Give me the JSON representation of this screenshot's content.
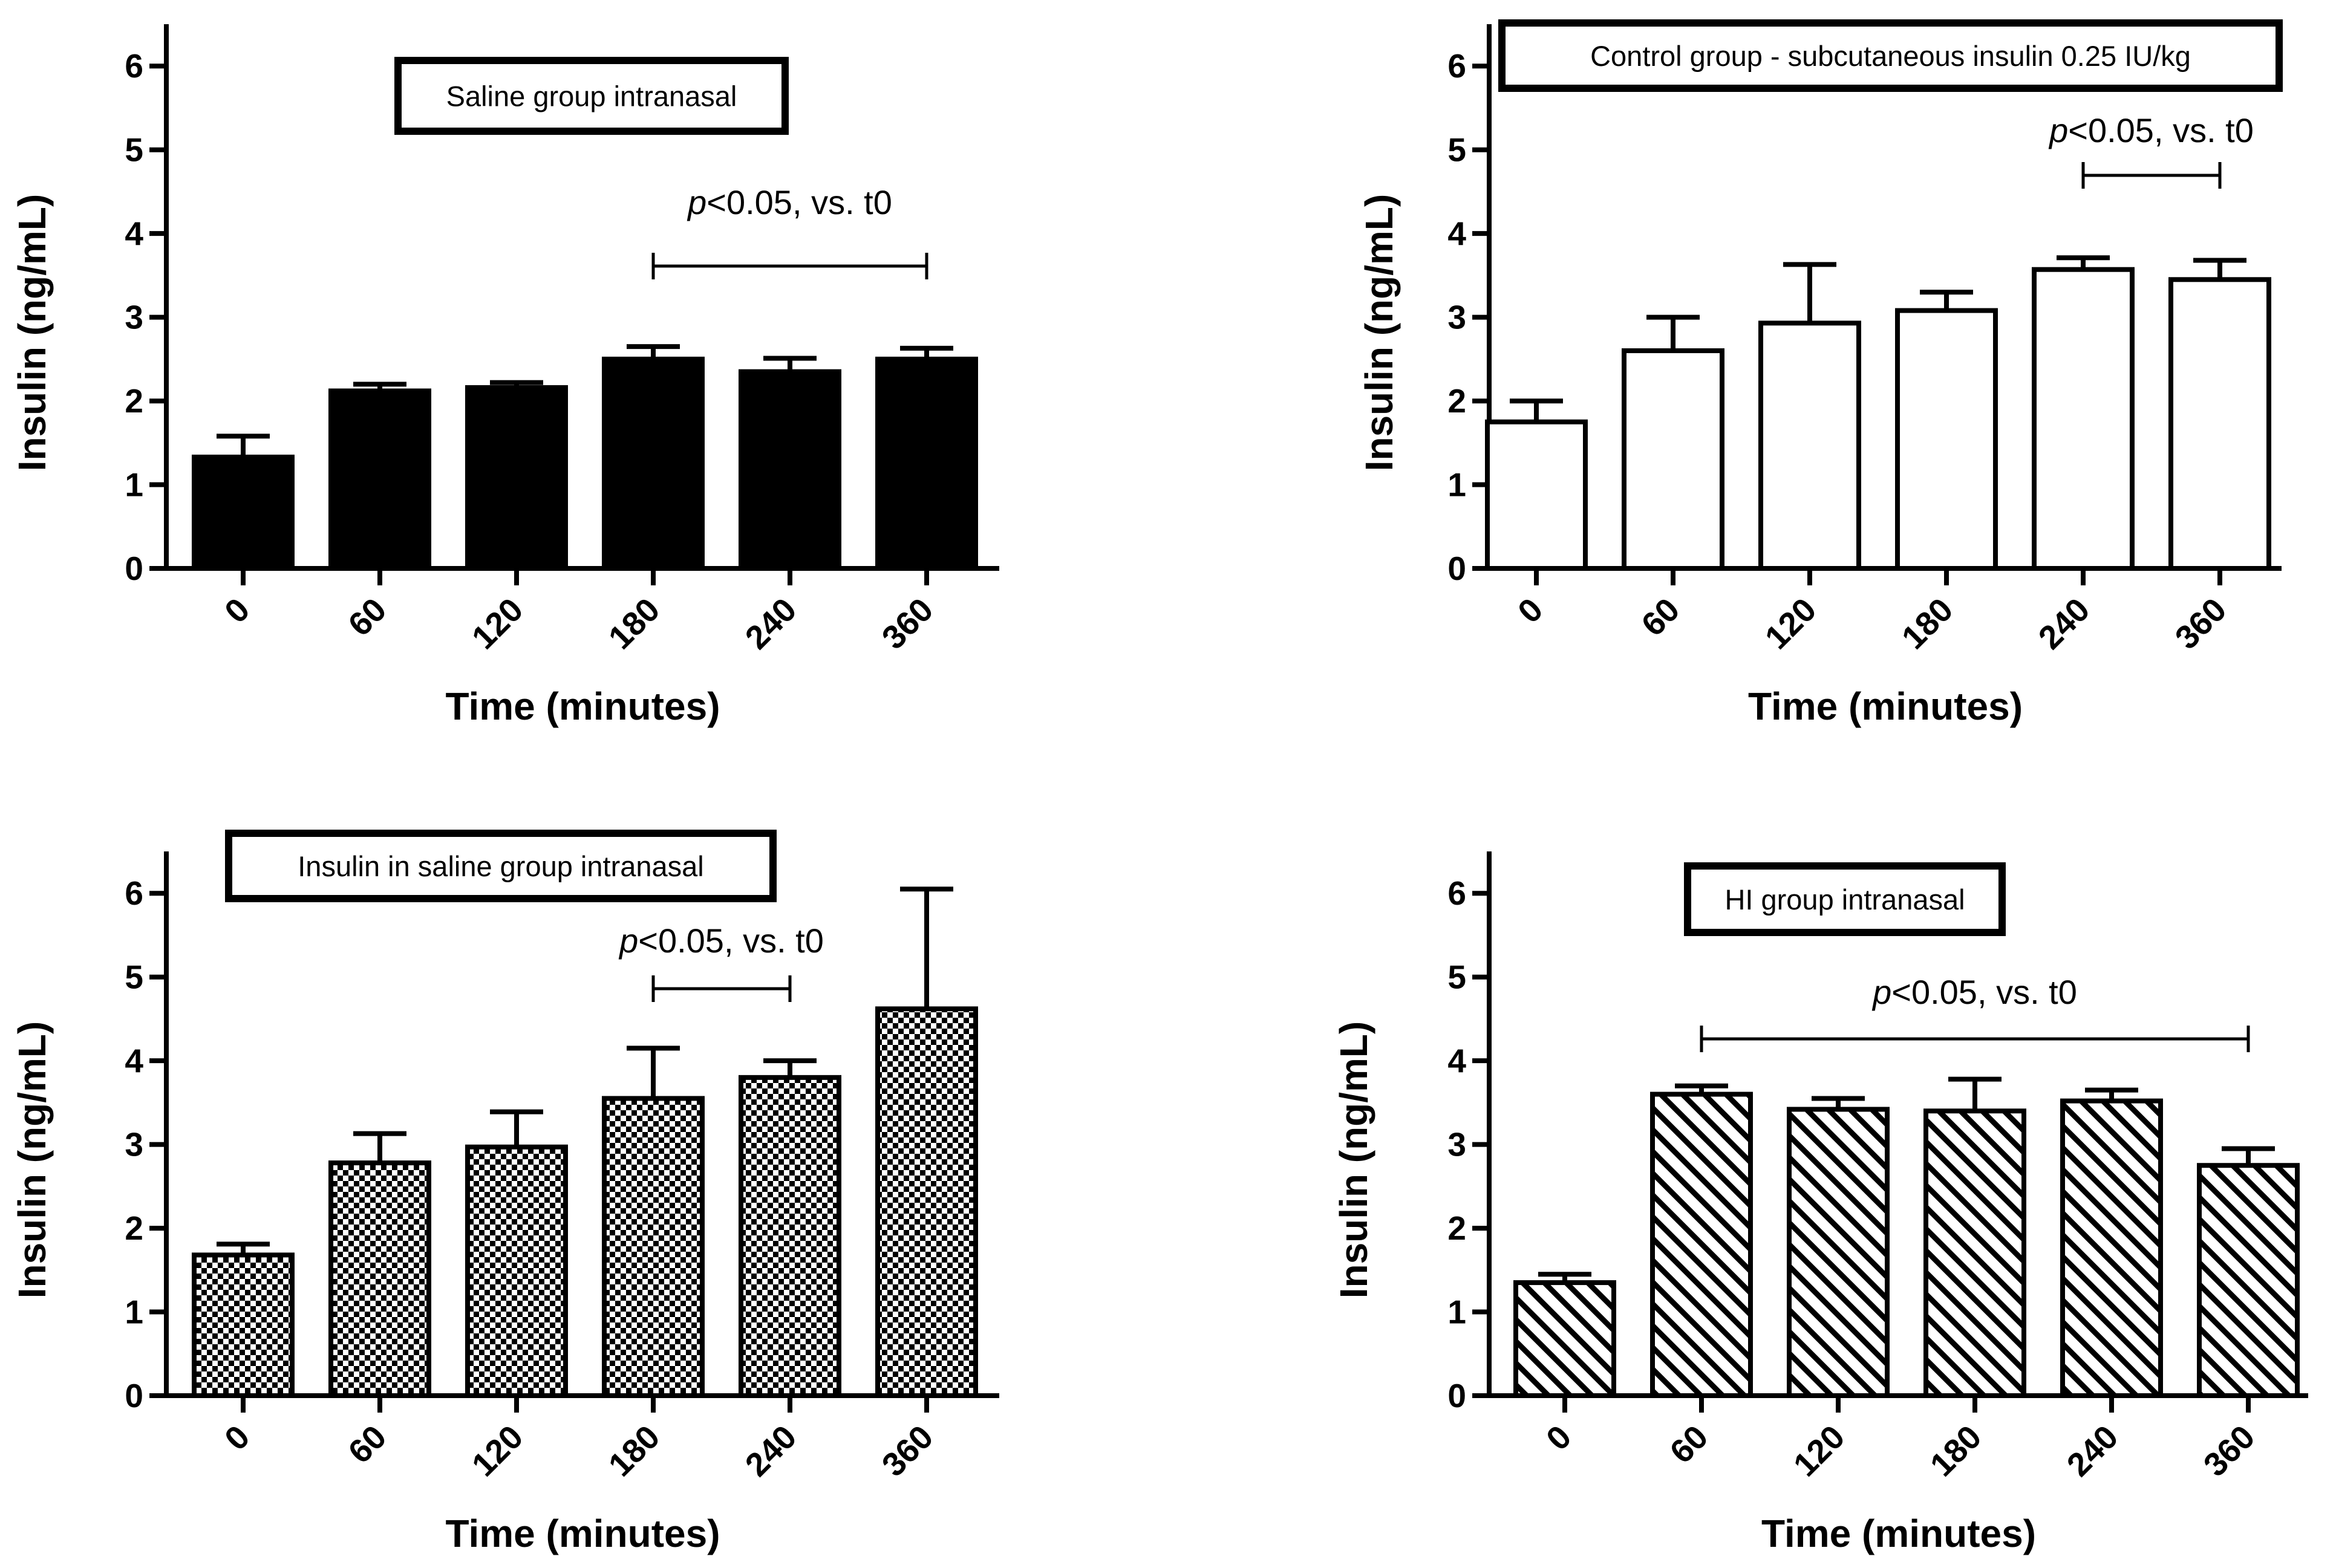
{
  "chart_data": [
    {
      "type": "bar",
      "panel": "top-left",
      "title": "Saline group intranasal",
      "categories": [
        "0",
        "60",
        "120",
        "180",
        "240",
        "360"
      ],
      "values": [
        1.33,
        2.12,
        2.16,
        2.5,
        2.35,
        2.5
      ],
      "errors": [
        0.25,
        0.08,
        0.06,
        0.15,
        0.16,
        0.13
      ],
      "fill": "solid",
      "xlabel": "Time (minutes)",
      "ylabel": "Insulin (ng/mL)",
      "ylim": [
        0,
        6.5
      ],
      "yticks": [
        "0",
        "1",
        "2",
        "3",
        "4",
        "5",
        "6"
      ],
      "significance": {
        "prefix": "p",
        "text": "<0.05, vs. t0",
        "from_category": 3,
        "to_category": 5
      }
    },
    {
      "type": "bar",
      "panel": "top-right",
      "title": "Control group - subcutaneous insulin 0.25 IU/kg",
      "categories": [
        "0",
        "60",
        "120",
        "180",
        "240",
        "360"
      ],
      "values": [
        1.75,
        2.6,
        2.93,
        3.08,
        3.57,
        3.45
      ],
      "errors": [
        0.25,
        0.4,
        0.7,
        0.22,
        0.14,
        0.23
      ],
      "fill": "white",
      "xlabel": "Time (minutes)",
      "ylabel": "Insulin (ng/mL)",
      "ylim": [
        0,
        6.5
      ],
      "yticks": [
        "0",
        "1",
        "2",
        "3",
        "4",
        "5",
        "6"
      ],
      "significance": {
        "prefix": "p",
        "text": "<0.05, vs. t0",
        "from_category": 4,
        "to_category": 5
      }
    },
    {
      "type": "bar",
      "panel": "bottom-left",
      "title": "Insulin in saline group intranasal",
      "categories": [
        "0",
        "60",
        "120",
        "180",
        "240",
        "360"
      ],
      "values": [
        1.68,
        2.78,
        2.97,
        3.55,
        3.8,
        4.62
      ],
      "errors": [
        0.13,
        0.35,
        0.42,
        0.6,
        0.2,
        1.43
      ],
      "fill": "checker",
      "xlabel": "Time (minutes)",
      "ylabel": "Insulin (ng/mL)",
      "ylim": [
        0,
        6.5
      ],
      "yticks": [
        "0",
        "1",
        "2",
        "3",
        "4",
        "5",
        "6"
      ],
      "significance": {
        "prefix": "p",
        "text": "<0.05, vs. t0",
        "from_category": 3,
        "to_category": 4
      }
    },
    {
      "type": "bar",
      "panel": "bottom-right",
      "title": "HI group intranasal",
      "categories": [
        "0",
        "60",
        "120",
        "180",
        "240",
        "360"
      ],
      "values": [
        1.35,
        3.6,
        3.42,
        3.4,
        3.52,
        2.75
      ],
      "errors": [
        0.1,
        0.1,
        0.13,
        0.38,
        0.13,
        0.2
      ],
      "fill": "hatch",
      "xlabel": "Time (minutes)",
      "ylabel": "Insulin (ng/mL)",
      "ylim": [
        0,
        6.5
      ],
      "yticks": [
        "0",
        "1",
        "2",
        "3",
        "4",
        "5",
        "6"
      ],
      "significance": {
        "prefix": "p",
        "text": "<0.05, vs. t0",
        "from_category": 1,
        "to_category": 5
      }
    }
  ]
}
